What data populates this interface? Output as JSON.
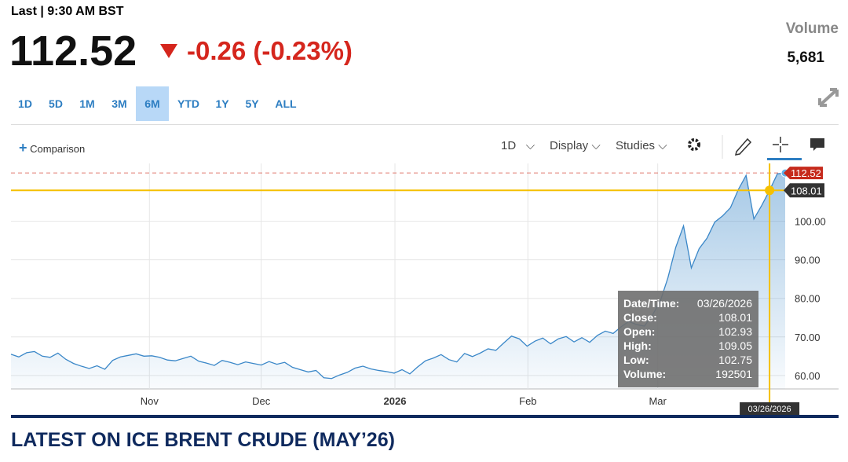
{
  "header": {
    "last_label": "Last | 9:30 AM BST",
    "price": "112.52",
    "change": "-0.26 (-0.23%)",
    "volume_label": "Volume",
    "volume": "5,681"
  },
  "ranges": [
    "1D",
    "5D",
    "1M",
    "3M",
    "6M",
    "YTD",
    "1Y",
    "5Y",
    "ALL"
  ],
  "selected_range": 4,
  "toolbar": {
    "comparison": "Comparison",
    "interval": "1D",
    "display": "Display",
    "studies": "Studies"
  },
  "chart_data": {
    "type": "line",
    "color": "#3a87c8",
    "values": [
      65.5,
      64.8,
      65.9,
      66.2,
      65.0,
      64.7,
      65.8,
      64.2,
      63.1,
      62.4,
      61.8,
      62.5,
      61.6,
      63.9,
      64.8,
      65.2,
      65.6,
      65.0,
      65.1,
      64.7,
      64.0,
      63.8,
      64.4,
      65.0,
      63.7,
      63.2,
      62.6,
      63.9,
      63.4,
      62.8,
      63.5,
      63.1,
      62.7,
      63.6,
      62.9,
      63.4,
      62.1,
      61.5,
      60.9,
      61.3,
      59.4,
      59.2,
      60.1,
      60.8,
      61.9,
      62.4,
      61.7,
      61.3,
      61.0,
      60.6,
      61.5,
      60.4,
      62.2,
      63.8,
      64.5,
      65.4,
      64.1,
      63.5,
      65.7,
      64.9,
      65.8,
      66.9,
      66.5,
      68.4,
      70.2,
      69.5,
      67.6,
      68.9,
      69.7,
      68.2,
      69.5,
      70.1,
      68.7,
      69.8,
      68.6,
      70.4,
      71.5,
      70.9,
      72.6,
      74.0,
      73.2,
      72.8,
      75.6,
      79.1,
      85.3,
      93.2,
      98.8,
      87.9,
      92.9,
      95.6,
      99.8,
      101.4,
      103.5,
      108.2,
      111.9,
      100.6,
      104.1,
      108.01,
      112.3,
      112.52
    ],
    "xlim": [
      0,
      99
    ],
    "xticks": [
      {
        "value": 17.7,
        "label": "Nov"
      },
      {
        "value": 32,
        "label": "Dec"
      },
      {
        "value": 49.1,
        "label": "2026"
      },
      {
        "value": 66.1,
        "label": "Feb"
      },
      {
        "value": 82.7,
        "label": "Mar"
      }
    ],
    "ylim": [
      56.5,
      115
    ],
    "yticks": [
      {
        "value": 60,
        "label": "60.00"
      },
      {
        "value": 70,
        "label": "70.00"
      },
      {
        "value": 80,
        "label": "80.00"
      },
      {
        "value": 90,
        "label": "90.00"
      },
      {
        "value": 100,
        "label": "100.00"
      }
    ],
    "grid": true,
    "last_price": {
      "value": 112.52,
      "label": "112.52"
    },
    "crosshair": {
      "index": 97,
      "value": 108.01,
      "label": "108.01",
      "date": "03/26/2026"
    }
  },
  "tooltip": {
    "rows": [
      [
        "Date/Time:",
        "03/26/2026"
      ],
      [
        "Close:",
        "108.01"
      ],
      [
        "Open:",
        "102.93"
      ],
      [
        "High:",
        "109.05"
      ],
      [
        "Low:",
        "102.75"
      ],
      [
        "Volume:",
        "192501"
      ]
    ]
  },
  "footer": {
    "title": "LATEST ON ICE BRENT CRUDE (MAY’26)"
  }
}
